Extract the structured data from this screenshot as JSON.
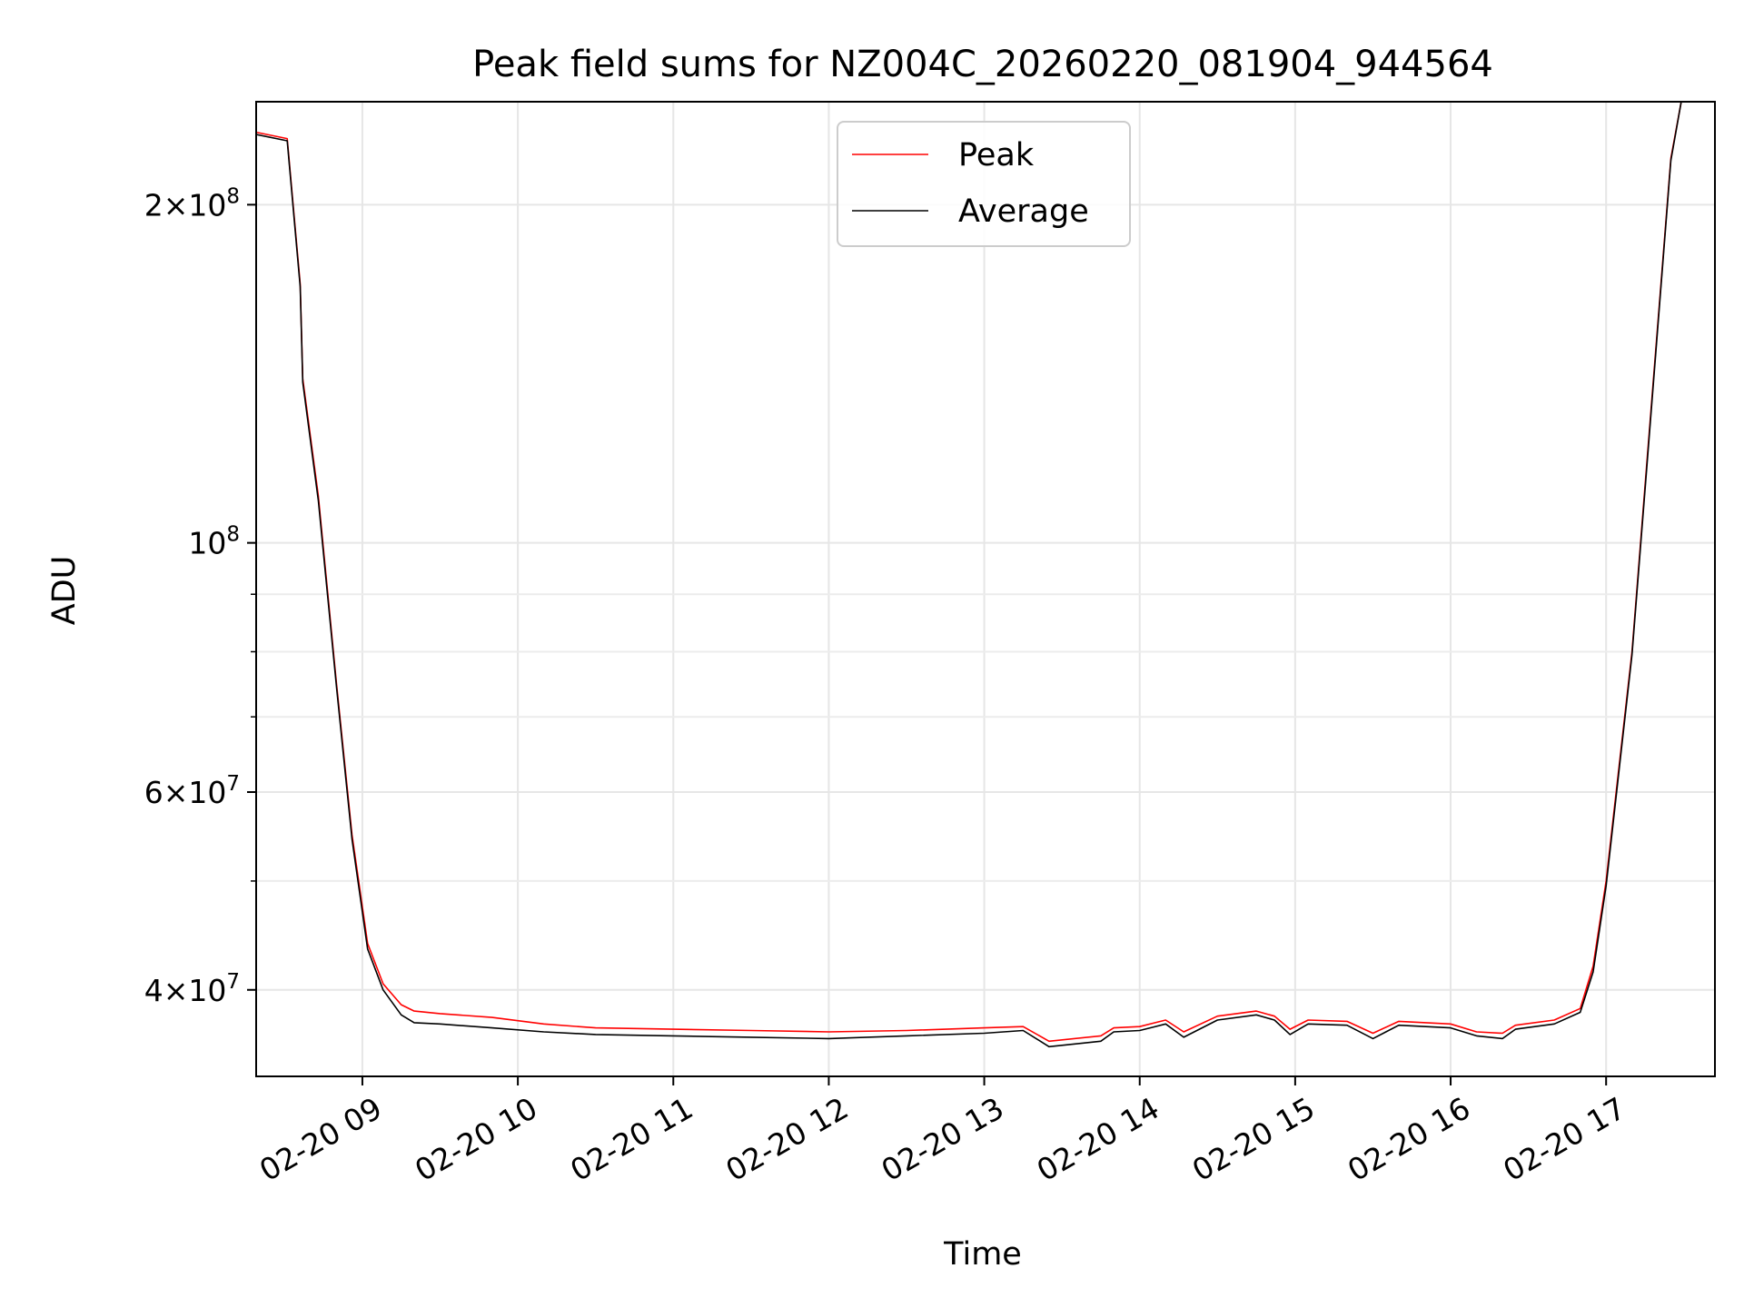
{
  "chart_data": {
    "type": "line",
    "title": "Peak field sums for NZ004C_20260220_081904_944564",
    "xlabel": "Time",
    "ylabel": "ADU",
    "yscale": "log",
    "grid": true,
    "legend_position": "upper-center",
    "xlim": [
      "2026-02-20T08:19",
      "2026-02-20T17:42"
    ],
    "ylim": [
      33500000,
      247000000
    ],
    "x_ticks": [
      {
        "value": "2026-02-20T09:00",
        "label": "02-20 09"
      },
      {
        "value": "2026-02-20T10:00",
        "label": "02-20 10"
      },
      {
        "value": "2026-02-20T11:00",
        "label": "02-20 11"
      },
      {
        "value": "2026-02-20T12:00",
        "label": "02-20 12"
      },
      {
        "value": "2026-02-20T13:00",
        "label": "02-20 13"
      },
      {
        "value": "2026-02-20T14:00",
        "label": "02-20 14"
      },
      {
        "value": "2026-02-20T15:00",
        "label": "02-20 15"
      },
      {
        "value": "2026-02-20T16:00",
        "label": "02-20 16"
      },
      {
        "value": "2026-02-20T17:00",
        "label": "02-20 17"
      }
    ],
    "y_ticks": [
      {
        "value": 40000000,
        "mantissa": "4",
        "exponent": "7"
      },
      {
        "value": 60000000,
        "mantissa": "6",
        "exponent": "7"
      },
      {
        "value": 100000000,
        "mantissa": "",
        "exponent": "8"
      },
      {
        "value": 200000000,
        "mantissa": "2",
        "exponent": "8"
      }
    ],
    "y_minor_ticks": [
      50000000,
      70000000,
      80000000,
      90000000
    ],
    "series": [
      {
        "name": "Peak",
        "color": "#ff0000",
        "points": [
          [
            "2026-02-20T08:19",
            232000000
          ],
          [
            "2026-02-20T08:31",
            229000000
          ],
          [
            "2026-02-20T08:36",
            170000000
          ],
          [
            "2026-02-20T08:37",
            140000000
          ],
          [
            "2026-02-20T08:43",
            110000000
          ],
          [
            "2026-02-20T08:50",
            75000000
          ],
          [
            "2026-02-20T08:56",
            55000000
          ],
          [
            "2026-02-20T09:02",
            44000000
          ],
          [
            "2026-02-20T09:08",
            40500000
          ],
          [
            "2026-02-20T09:15",
            38800000
          ],
          [
            "2026-02-20T09:20",
            38300000
          ],
          [
            "2026-02-20T09:30",
            38100000
          ],
          [
            "2026-02-20T09:50",
            37800000
          ],
          [
            "2026-02-20T10:10",
            37300000
          ],
          [
            "2026-02-20T10:30",
            37000000
          ],
          [
            "2026-02-20T11:00",
            36900000
          ],
          [
            "2026-02-20T11:30",
            36800000
          ],
          [
            "2026-02-20T12:00",
            36700000
          ],
          [
            "2026-02-20T12:30",
            36800000
          ],
          [
            "2026-02-20T13:00",
            37000000
          ],
          [
            "2026-02-20T13:15",
            37100000
          ],
          [
            "2026-02-20T13:25",
            36000000
          ],
          [
            "2026-02-20T13:45",
            36400000
          ],
          [
            "2026-02-20T13:50",
            37000000
          ],
          [
            "2026-02-20T14:00",
            37100000
          ],
          [
            "2026-02-20T14:10",
            37600000
          ],
          [
            "2026-02-20T14:17",
            36700000
          ],
          [
            "2026-02-20T14:30",
            37900000
          ],
          [
            "2026-02-20T14:45",
            38300000
          ],
          [
            "2026-02-20T14:52",
            37900000
          ],
          [
            "2026-02-20T14:58",
            36900000
          ],
          [
            "2026-02-20T15:05",
            37600000
          ],
          [
            "2026-02-20T15:20",
            37500000
          ],
          [
            "2026-02-20T15:30",
            36600000
          ],
          [
            "2026-02-20T15:40",
            37500000
          ],
          [
            "2026-02-20T16:00",
            37300000
          ],
          [
            "2026-02-20T16:10",
            36700000
          ],
          [
            "2026-02-20T16:20",
            36600000
          ],
          [
            "2026-02-20T16:25",
            37200000
          ],
          [
            "2026-02-20T16:40",
            37600000
          ],
          [
            "2026-02-20T16:50",
            38500000
          ],
          [
            "2026-02-20T16:55",
            42000000
          ],
          [
            "2026-02-20T17:00",
            50000000
          ],
          [
            "2026-02-20T17:10",
            80000000
          ],
          [
            "2026-02-20T17:16",
            120000000
          ],
          [
            "2026-02-20T17:25",
            220000000
          ],
          [
            "2026-02-20T17:29",
            247000000
          ]
        ]
      },
      {
        "name": "Average",
        "color": "#000000",
        "points": [
          [
            "2026-02-20T08:19",
            231000000
          ],
          [
            "2026-02-20T08:31",
            228000000
          ],
          [
            "2026-02-20T08:36",
            169000000
          ],
          [
            "2026-02-20T08:37",
            139000000
          ],
          [
            "2026-02-20T08:43",
            109000000
          ],
          [
            "2026-02-20T08:50",
            74500000
          ],
          [
            "2026-02-20T08:56",
            54500000
          ],
          [
            "2026-02-20T09:02",
            43500000
          ],
          [
            "2026-02-20T09:08",
            40000000
          ],
          [
            "2026-02-20T09:15",
            38000000
          ],
          [
            "2026-02-20T09:20",
            37400000
          ],
          [
            "2026-02-20T09:30",
            37300000
          ],
          [
            "2026-02-20T09:50",
            37000000
          ],
          [
            "2026-02-20T10:10",
            36700000
          ],
          [
            "2026-02-20T10:30",
            36500000
          ],
          [
            "2026-02-20T11:00",
            36400000
          ],
          [
            "2026-02-20T11:30",
            36300000
          ],
          [
            "2026-02-20T12:00",
            36200000
          ],
          [
            "2026-02-20T12:30",
            36400000
          ],
          [
            "2026-02-20T13:00",
            36600000
          ],
          [
            "2026-02-20T13:15",
            36800000
          ],
          [
            "2026-02-20T13:25",
            35600000
          ],
          [
            "2026-02-20T13:45",
            36000000
          ],
          [
            "2026-02-20T13:50",
            36700000
          ],
          [
            "2026-02-20T14:00",
            36800000
          ],
          [
            "2026-02-20T14:10",
            37300000
          ],
          [
            "2026-02-20T14:17",
            36300000
          ],
          [
            "2026-02-20T14:30",
            37600000
          ],
          [
            "2026-02-20T14:45",
            38000000
          ],
          [
            "2026-02-20T14:52",
            37600000
          ],
          [
            "2026-02-20T14:58",
            36500000
          ],
          [
            "2026-02-20T15:05",
            37300000
          ],
          [
            "2026-02-20T15:20",
            37200000
          ],
          [
            "2026-02-20T15:30",
            36200000
          ],
          [
            "2026-02-20T15:40",
            37200000
          ],
          [
            "2026-02-20T16:00",
            37000000
          ],
          [
            "2026-02-20T16:10",
            36400000
          ],
          [
            "2026-02-20T16:20",
            36200000
          ],
          [
            "2026-02-20T16:25",
            36900000
          ],
          [
            "2026-02-20T16:40",
            37300000
          ],
          [
            "2026-02-20T16:50",
            38200000
          ],
          [
            "2026-02-20T16:55",
            41500000
          ],
          [
            "2026-02-20T17:00",
            49500000
          ],
          [
            "2026-02-20T17:10",
            79500000
          ],
          [
            "2026-02-20T17:16",
            119000000
          ],
          [
            "2026-02-20T17:25",
            219000000
          ],
          [
            "2026-02-20T17:29",
            247000000
          ]
        ]
      }
    ]
  }
}
